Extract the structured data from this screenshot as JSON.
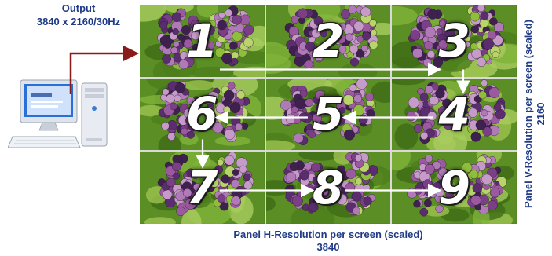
{
  "output": {
    "title": "Output",
    "resolution": "3840 x 2160/30Hz"
  },
  "wall": {
    "panels": [
      {
        "number": "1"
      },
      {
        "number": "2"
      },
      {
        "number": "3"
      },
      {
        "number": "6"
      },
      {
        "number": "5"
      },
      {
        "number": "4"
      },
      {
        "number": "7"
      },
      {
        "number": "8"
      },
      {
        "number": "9"
      }
    ]
  },
  "labels": {
    "h_title": "Panel H-Resolution per screen (scaled)",
    "h_value": "3840",
    "v_title": "Panel V-Resolution per screen (scaled)",
    "v_value": "2160"
  },
  "colors": {
    "label_text": "#1f3b86",
    "connector": "#8b1a1a",
    "flow_arrows": "#ffffff"
  }
}
